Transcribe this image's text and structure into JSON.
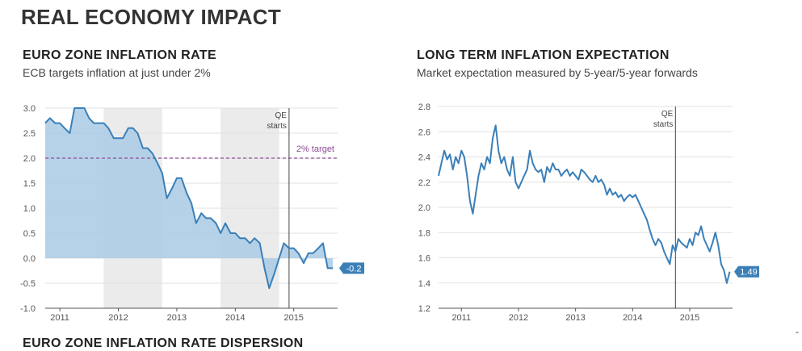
{
  "page": {
    "title": "REAL ECONOMY IMPACT",
    "bottom_title": "EURO ZONE INFLATION RATE DISPERSION",
    "corner_mark": "-"
  },
  "colors": {
    "line": "#3a7fb8",
    "area": "#aecde6",
    "shade": "#ebebeb",
    "target": "#8e4b97",
    "grid": "#e2e2e2",
    "label_bg": "#3a7fb8"
  },
  "chart_data": [
    {
      "type": "area",
      "title": "EURO ZONE INFLATION RATE",
      "subtitle": "ECB targets inflation at just under 2%",
      "ylim": [
        -1.0,
        3.0
      ],
      "yticks": [
        "3.0",
        "2.5",
        "2.0",
        "1.5",
        "1.0",
        "0.5",
        "0.0",
        "-0.5",
        "-1.0"
      ],
      "ytick_values": [
        3.0,
        2.5,
        2.0,
        1.5,
        1.0,
        0.5,
        0.0,
        -0.5,
        -1.0
      ],
      "xlim": [
        2010.75,
        2015.75
      ],
      "xticks": [
        "2011",
        "2012",
        "2013",
        "2014",
        "2015"
      ],
      "xtick_values": [
        2011.0,
        2012.0,
        2013.0,
        2014.0,
        2015.0
      ],
      "shaded_periods": [
        [
          2011.75,
          2012.75
        ],
        [
          2013.75,
          2014.75
        ]
      ],
      "target": {
        "value": 2.0,
        "label": "2% target"
      },
      "annotation": {
        "x": 2014.92,
        "label_line1": "QE",
        "label_line2": "starts"
      },
      "end_label": "-0.2",
      "series": [
        {
          "name": "Euro zone inflation rate",
          "x": [
            2010.75,
            2010.83,
            2010.92,
            2011.0,
            2011.08,
            2011.17,
            2011.25,
            2011.33,
            2011.42,
            2011.5,
            2011.58,
            2011.67,
            2011.75,
            2011.83,
            2011.92,
            2012.0,
            2012.08,
            2012.17,
            2012.25,
            2012.33,
            2012.42,
            2012.5,
            2012.58,
            2012.67,
            2012.75,
            2012.83,
            2012.92,
            2013.0,
            2013.08,
            2013.17,
            2013.25,
            2013.33,
            2013.42,
            2013.5,
            2013.58,
            2013.67,
            2013.75,
            2013.83,
            2013.92,
            2014.0,
            2014.08,
            2014.17,
            2014.25,
            2014.33,
            2014.42,
            2014.5,
            2014.58,
            2014.67,
            2014.75,
            2014.83,
            2014.92,
            2015.0,
            2015.08,
            2015.17,
            2015.25,
            2015.33,
            2015.42,
            2015.5,
            2015.58,
            2015.67
          ],
          "values": [
            2.7,
            2.8,
            2.7,
            2.7,
            2.6,
            2.5,
            3.0,
            3.0,
            3.0,
            2.8,
            2.7,
            2.7,
            2.7,
            2.6,
            2.4,
            2.4,
            2.4,
            2.6,
            2.6,
            2.5,
            2.2,
            2.2,
            2.1,
            1.9,
            1.7,
            1.2,
            1.4,
            1.6,
            1.6,
            1.3,
            1.1,
            0.7,
            0.9,
            0.8,
            0.8,
            0.7,
            0.5,
            0.7,
            0.5,
            0.5,
            0.4,
            0.4,
            0.3,
            0.4,
            0.3,
            -0.2,
            -0.6,
            -0.3,
            0.0,
            0.3,
            0.2,
            0.2,
            0.1,
            -0.1,
            0.1,
            0.1,
            0.2,
            0.3,
            -0.2,
            -0.2
          ]
        }
      ]
    },
    {
      "type": "line",
      "title": "LONG TERM INFLATION EXPECTATION",
      "subtitle": "Market expectation measured by 5-year/5-year forwards",
      "ylim": [
        1.2,
        2.8
      ],
      "yticks": [
        "2.8",
        "2.6",
        "2.4",
        "2.2",
        "2.0",
        "1.8",
        "1.6",
        "1.4",
        "1.2"
      ],
      "ytick_values": [
        2.8,
        2.6,
        2.4,
        2.2,
        2.0,
        1.8,
        1.6,
        1.4,
        1.2
      ],
      "xlim": [
        2010.6,
        2015.75
      ],
      "xticks": [
        "2011",
        "2012",
        "2013",
        "2014",
        "2015"
      ],
      "xtick_values": [
        2011.0,
        2012.0,
        2013.0,
        2014.0,
        2015.0
      ],
      "annotation": {
        "x": 2014.75,
        "label_line1": "QE",
        "label_line2": "starts"
      },
      "end_label": "1.49",
      "series": [
        {
          "name": "5-year/5-year forward inflation expectation",
          "x": [
            2010.6,
            2010.65,
            2010.7,
            2010.75,
            2010.8,
            2010.85,
            2010.9,
            2010.95,
            2011.0,
            2011.05,
            2011.1,
            2011.15,
            2011.2,
            2011.25,
            2011.3,
            2011.35,
            2011.4,
            2011.45,
            2011.5,
            2011.55,
            2011.6,
            2011.65,
            2011.7,
            2011.75,
            2011.8,
            2011.85,
            2011.9,
            2011.95,
            2012.0,
            2012.05,
            2012.1,
            2012.15,
            2012.2,
            2012.25,
            2012.3,
            2012.35,
            2012.4,
            2012.45,
            2012.5,
            2012.55,
            2012.6,
            2012.65,
            2012.7,
            2012.75,
            2012.8,
            2012.85,
            2012.9,
            2012.95,
            2013.0,
            2013.05,
            2013.1,
            2013.15,
            2013.2,
            2013.25,
            2013.3,
            2013.35,
            2013.4,
            2013.45,
            2013.5,
            2013.55,
            2013.6,
            2013.65,
            2013.7,
            2013.75,
            2013.8,
            2013.85,
            2013.9,
            2013.95,
            2014.0,
            2014.05,
            2014.1,
            2014.15,
            2014.2,
            2014.25,
            2014.3,
            2014.35,
            2014.4,
            2014.45,
            2014.5,
            2014.55,
            2014.6,
            2014.65,
            2014.7,
            2014.75,
            2014.8,
            2014.85,
            2014.9,
            2014.95,
            2015.0,
            2015.05,
            2015.1,
            2015.15,
            2015.2,
            2015.25,
            2015.3,
            2015.35,
            2015.4,
            2015.45,
            2015.5,
            2015.55,
            2015.6,
            2015.65,
            2015.7
          ],
          "values": [
            2.25,
            2.35,
            2.45,
            2.38,
            2.42,
            2.3,
            2.4,
            2.35,
            2.45,
            2.4,
            2.25,
            2.05,
            1.95,
            2.1,
            2.25,
            2.35,
            2.3,
            2.4,
            2.35,
            2.55,
            2.65,
            2.45,
            2.35,
            2.4,
            2.3,
            2.25,
            2.4,
            2.2,
            2.15,
            2.2,
            2.25,
            2.3,
            2.45,
            2.35,
            2.3,
            2.28,
            2.3,
            2.2,
            2.32,
            2.28,
            2.35,
            2.3,
            2.3,
            2.25,
            2.28,
            2.3,
            2.25,
            2.28,
            2.25,
            2.22,
            2.3,
            2.28,
            2.25,
            2.22,
            2.2,
            2.25,
            2.2,
            2.22,
            2.18,
            2.1,
            2.15,
            2.1,
            2.12,
            2.08,
            2.1,
            2.05,
            2.08,
            2.1,
            2.08,
            2.1,
            2.05,
            2.0,
            1.95,
            1.9,
            1.82,
            1.75,
            1.7,
            1.75,
            1.72,
            1.65,
            1.6,
            1.55,
            1.7,
            1.65,
            1.75,
            1.72,
            1.7,
            1.68,
            1.75,
            1.7,
            1.8,
            1.78,
            1.85,
            1.75,
            1.7,
            1.65,
            1.72,
            1.8,
            1.7,
            1.55,
            1.5,
            1.4,
            1.49
          ]
        }
      ]
    }
  ]
}
